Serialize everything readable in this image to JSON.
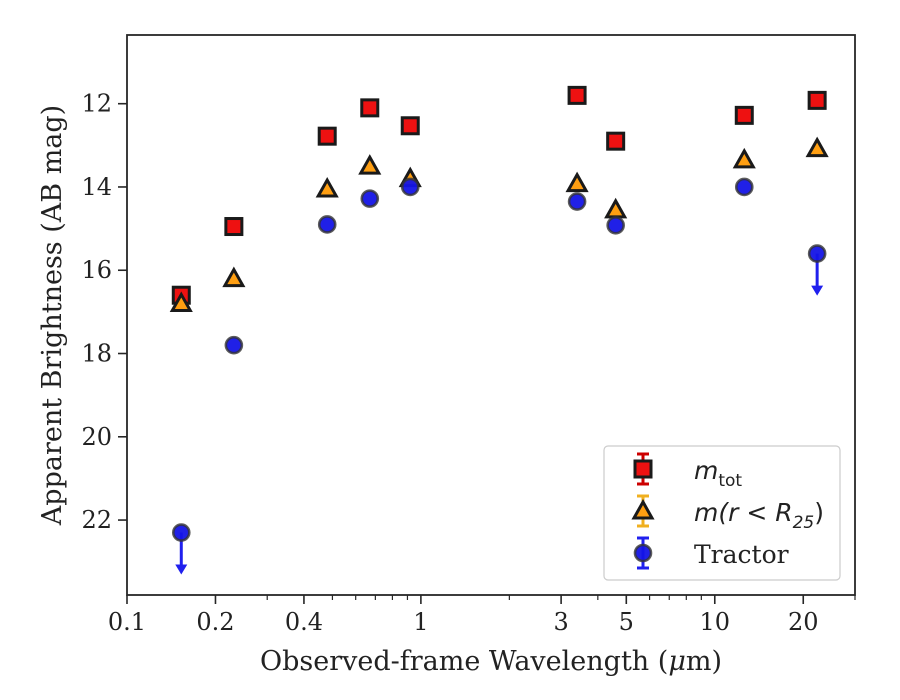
{
  "chart_data": {
    "type": "scatter",
    "xlabel_main": "Observed-frame Wavelength (",
    "xlabel_symbol": "μ",
    "xlabel_unit": "m)",
    "ylabel": "Apparent Brightness (AB mag)",
    "x_scale": "log",
    "xlim": [
      0.1,
      30
    ],
    "ylim": [
      23.8,
      10.35
    ],
    "y_inverted": true,
    "grid": false,
    "legend_position": "bottom-right",
    "x_ticks": [
      0.1,
      0.2,
      0.4,
      1,
      3,
      5,
      10,
      20
    ],
    "x_tick_labels": [
      "0.1",
      "0.2",
      "0.4",
      "1",
      "3",
      "5",
      "10",
      "20"
    ],
    "y_ticks": [
      12,
      14,
      16,
      18,
      20,
      22
    ],
    "y_tick_labels": [
      "12",
      "14",
      "16",
      "18",
      "20",
      "22"
    ],
    "series": [
      {
        "key": "mtot",
        "legend_base": "m",
        "legend_sub": "tot",
        "marker": "square",
        "color": "#ee1111",
        "edge": "#1a1a1a",
        "errcolor": "#cc0000",
        "points": [
          {
            "x": 0.153,
            "y": 16.6
          },
          {
            "x": 0.231,
            "y": 14.95
          },
          {
            "x": 0.48,
            "y": 12.78
          },
          {
            "x": 0.67,
            "y": 12.1
          },
          {
            "x": 0.92,
            "y": 12.53
          },
          {
            "x": 3.4,
            "y": 11.8
          },
          {
            "x": 4.6,
            "y": 12.9
          },
          {
            "x": 12.6,
            "y": 12.28
          },
          {
            "x": 22.3,
            "y": 11.92
          }
        ]
      },
      {
        "key": "mr25",
        "legend_base": "m(r < R",
        "legend_sub": "25",
        "legend_end": ")",
        "marker": "triangle",
        "color": "#ff9f12",
        "edge": "#1a1a1a",
        "errcolor": "#f0b020",
        "points": [
          {
            "x": 0.153,
            "y": 16.8
          },
          {
            "x": 0.231,
            "y": 16.2
          },
          {
            "x": 0.48,
            "y": 14.05
          },
          {
            "x": 0.67,
            "y": 13.5
          },
          {
            "x": 0.92,
            "y": 13.8
          },
          {
            "x": 3.4,
            "y": 13.92
          },
          {
            "x": 4.6,
            "y": 14.55
          },
          {
            "x": 12.6,
            "y": 13.35
          },
          {
            "x": 22.3,
            "y": 13.08
          }
        ]
      },
      {
        "key": "tractor",
        "name": "Tractor",
        "marker": "circle",
        "color": "#1414e6",
        "edge": "#333333",
        "errcolor": "#2020ee",
        "points": [
          {
            "x": 0.153,
            "y": 22.3,
            "upper_limit": true
          },
          {
            "x": 0.231,
            "y": 17.8
          },
          {
            "x": 0.48,
            "y": 14.9
          },
          {
            "x": 0.67,
            "y": 14.28
          },
          {
            "x": 0.92,
            "y": 14.0
          },
          {
            "x": 3.4,
            "y": 14.35
          },
          {
            "x": 4.6,
            "y": 14.92
          },
          {
            "x": 12.6,
            "y": 14.0
          },
          {
            "x": 22.3,
            "y": 15.6,
            "upper_limit": true
          }
        ]
      }
    ]
  }
}
